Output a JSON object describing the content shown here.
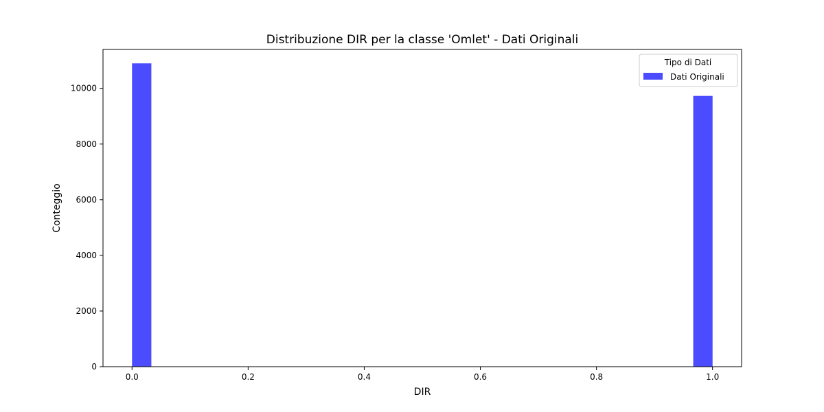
{
  "chart_data": {
    "type": "bar",
    "title": "Distribuzione DIR per la classe 'Omlet' - Dati Originali",
    "xlabel": "DIR",
    "ylabel": "Conteggio",
    "xlim": [
      -0.05,
      1.05
    ],
    "ylim": [
      0,
      11400
    ],
    "xticks": [
      0.0,
      0.2,
      0.4,
      0.6,
      0.8,
      1.0
    ],
    "xtick_labels": [
      "0.0",
      "0.2",
      "0.4",
      "0.6",
      "0.8",
      "1.0"
    ],
    "yticks": [
      0,
      2000,
      4000,
      6000,
      8000,
      10000
    ],
    "ytick_labels": [
      "0",
      "2000",
      "4000",
      "6000",
      "8000",
      "10000"
    ],
    "grid": false,
    "legend": {
      "title": "Tipo di Dati",
      "position": "top-right"
    },
    "series": [
      {
        "name": "Dati Originali",
        "color": "#4b4bff",
        "bins": [
          {
            "x0": 0.0,
            "x1": 0.0333,
            "value": 10900
          },
          {
            "x0": 0.9667,
            "x1": 1.0,
            "value": 9730
          }
        ]
      }
    ]
  }
}
